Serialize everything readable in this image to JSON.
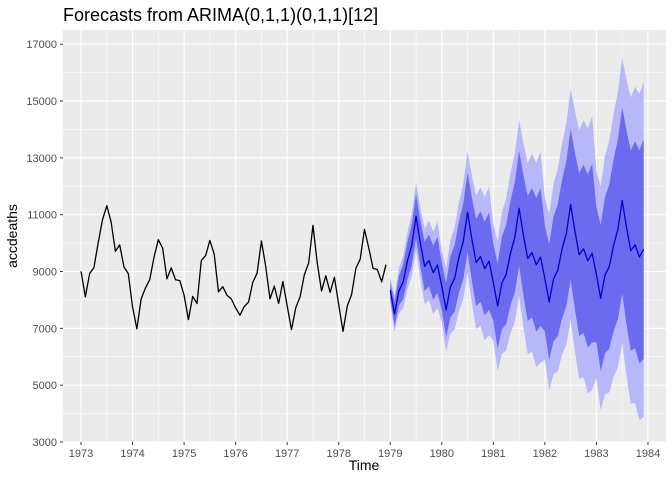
{
  "chart_data": {
    "type": "line",
    "title": "Forecasts from ARIMA(0,1,1)(0,1,1)[12]",
    "xlabel": "Time",
    "ylabel": "accdeaths",
    "xlim": [
      1972.65,
      1984.35
    ],
    "ylim": [
      3000,
      17500
    ],
    "x_ticks": [
      "1973",
      "1974",
      "1975",
      "1976",
      "1977",
      "1978",
      "1979",
      "1980",
      "1981",
      "1982",
      "1983",
      "1984"
    ],
    "y_ticks": [
      "3000",
      "5000",
      "7000",
      "9000",
      "11000",
      "13000",
      "15000",
      "17000"
    ],
    "grid": true,
    "colors": {
      "panel": "#ebebeb",
      "grid": "#ffffff",
      "observed": "#000000",
      "forecast": "#0000cc",
      "pi80": "#6b6bf0",
      "pi95": "#b7b7fa"
    },
    "series": [
      {
        "role": "observed",
        "x_start": 1973,
        "step": 0.08333,
        "values": [
          9007,
          8106,
          8928,
          9137,
          10017,
          10826,
          11317,
          10744,
          9713,
          9938,
          9161,
          8927,
          7750,
          6981,
          8038,
          8422,
          8714,
          9512,
          10120,
          9823,
          8743,
          9129,
          8710,
          8680,
          8162,
          7306,
          8124,
          7870,
          9387,
          9556,
          10093,
          9620,
          8285,
          8466,
          8160,
          8034,
          7717,
          7461,
          7767,
          7925,
          8623,
          8945,
          10078,
          9179,
          8037,
          8488,
          7874,
          8647,
          7792,
          6957,
          7726,
          8106,
          8890,
          9299,
          10625,
          9302,
          8314,
          8850,
          8265,
          8796,
          7836,
          6892,
          7791,
          8192,
          9115,
          9434,
          10484,
          9827,
          9110,
          9070,
          8633,
          9240
        ]
      },
      {
        "role": "forecast",
        "x_start": 1979,
        "step": 0.08333,
        "values": [
          8337,
          7509,
          8320,
          8628,
          9375,
          9924,
          10948,
          10004,
          9180,
          9389,
          8960,
          9231,
          8475,
          7647,
          8458,
          8766,
          9513,
          10062,
          11086,
          10142,
          9318,
          9527,
          9098,
          9369,
          8613,
          7785,
          8596,
          8904,
          9651,
          10200,
          11224,
          10280,
          9456,
          9665,
          9236,
          9507,
          8751,
          7923,
          8734,
          9042,
          9789,
          10338,
          11362,
          10418,
          9594,
          9803,
          9374,
          9645,
          8889,
          8061,
          8872,
          9180,
          9927,
          10476,
          11500,
          10556,
          9732,
          9941,
          9512,
          9783
        ]
      }
    ],
    "interval_half_widths": {
      "pi80_at_1_year_h": [
        300,
        420,
        520,
        600,
        660,
        720,
        770,
        820,
        870,
        910,
        950,
        990
      ],
      "model": "widths grow with horizon"
    }
  }
}
